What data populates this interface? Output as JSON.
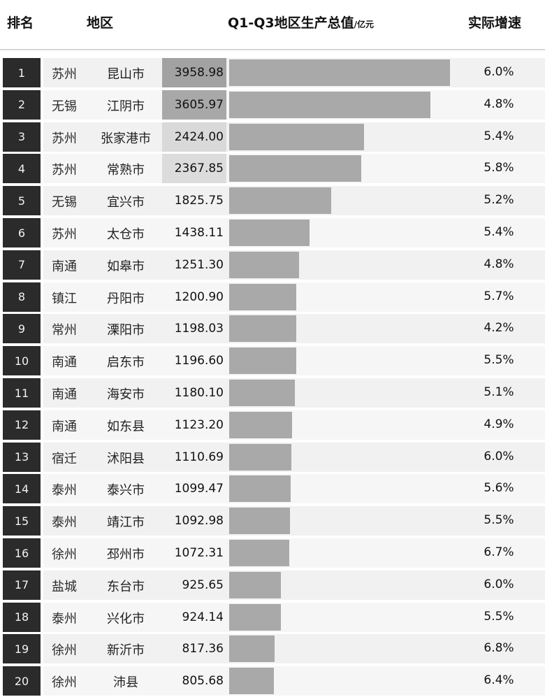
{
  "header": {
    "rank": "排名",
    "region": "地区",
    "gdp": "Q1-Q3地区生产总值",
    "gdp_unit": "/亿元",
    "growth": "实际增速"
  },
  "chart_data": {
    "type": "bar",
    "orientation": "horizontal",
    "title": "",
    "value_label": "Q1-Q3地区生产总值/亿元",
    "xlim": [
      0,
      3958.98
    ],
    "columns": [
      "排名",
      "地区",
      "Q1-Q3地区生产总值/亿元",
      "实际增速"
    ],
    "rows": [
      {
        "rank": "1",
        "city": "苏州",
        "county": "昆山市",
        "value": 3958.98,
        "value_text": "3958.98",
        "growth": "6.0%"
      },
      {
        "rank": "2",
        "city": "无锡",
        "county": "江阴市",
        "value": 3605.97,
        "value_text": "3605.97",
        "growth": "4.8%"
      },
      {
        "rank": "3",
        "city": "苏州",
        "county": "张家港市",
        "value": 2424.0,
        "value_text": "2424.00",
        "growth": "5.4%"
      },
      {
        "rank": "4",
        "city": "苏州",
        "county": "常熟市",
        "value": 2367.85,
        "value_text": "2367.85",
        "growth": "5.8%"
      },
      {
        "rank": "5",
        "city": "无锡",
        "county": "宜兴市",
        "value": 1825.75,
        "value_text": "1825.75",
        "growth": "5.2%"
      },
      {
        "rank": "6",
        "city": "苏州",
        "county": "太仓市",
        "value": 1438.11,
        "value_text": "1438.11",
        "growth": "5.4%"
      },
      {
        "rank": "7",
        "city": "南通",
        "county": "如皋市",
        "value": 1251.3,
        "value_text": "1251.30",
        "growth": "4.8%"
      },
      {
        "rank": "8",
        "city": "镇江",
        "county": "丹阳市",
        "value": 1200.9,
        "value_text": "1200.90",
        "growth": "5.7%"
      },
      {
        "rank": "9",
        "city": "常州",
        "county": "溧阳市",
        "value": 1198.03,
        "value_text": "1198.03",
        "growth": "4.2%"
      },
      {
        "rank": "10",
        "city": "南通",
        "county": "启东市",
        "value": 1196.6,
        "value_text": "1196.60",
        "growth": "5.5%"
      },
      {
        "rank": "11",
        "city": "南通",
        "county": "海安市",
        "value": 1180.1,
        "value_text": "1180.10",
        "growth": "5.1%"
      },
      {
        "rank": "12",
        "city": "南通",
        "county": "如东县",
        "value": 1123.2,
        "value_text": "1123.20",
        "growth": "4.9%"
      },
      {
        "rank": "13",
        "city": "宿迁",
        "county": "沭阳县",
        "value": 1110.69,
        "value_text": "1110.69",
        "growth": "6.0%"
      },
      {
        "rank": "14",
        "city": "泰州",
        "county": "泰兴市",
        "value": 1099.47,
        "value_text": "1099.47",
        "growth": "5.6%"
      },
      {
        "rank": "15",
        "city": "泰州",
        "county": "靖江市",
        "value": 1092.98,
        "value_text": "1092.98",
        "growth": "5.5%"
      },
      {
        "rank": "16",
        "city": "徐州",
        "county": "邳州市",
        "value": 1072.31,
        "value_text": "1072.31",
        "growth": "6.7%"
      },
      {
        "rank": "17",
        "city": "盐城",
        "county": "东台市",
        "value": 925.65,
        "value_text": "925.65",
        "growth": "6.0%"
      },
      {
        "rank": "18",
        "city": "泰州",
        "county": "兴化市",
        "value": 924.14,
        "value_text": "924.14",
        "growth": "5.5%"
      },
      {
        "rank": "19",
        "city": "徐州",
        "county": "新沂市",
        "value": 817.36,
        "value_text": "817.36",
        "growth": "6.8%"
      },
      {
        "rank": "20",
        "city": "徐州",
        "county": "沛县",
        "value": 805.68,
        "value_text": "805.68",
        "growth": "6.4%"
      }
    ]
  },
  "colors": {
    "rank_bg": "#2b2b2b",
    "bar": "#a9a9a9",
    "value_highlight_1": "#a2a2a2",
    "value_highlight_2": "#a8a8a8",
    "value_highlight_3": "#d9d9d9",
    "value_highlight_4": "#dcdcdc"
  }
}
